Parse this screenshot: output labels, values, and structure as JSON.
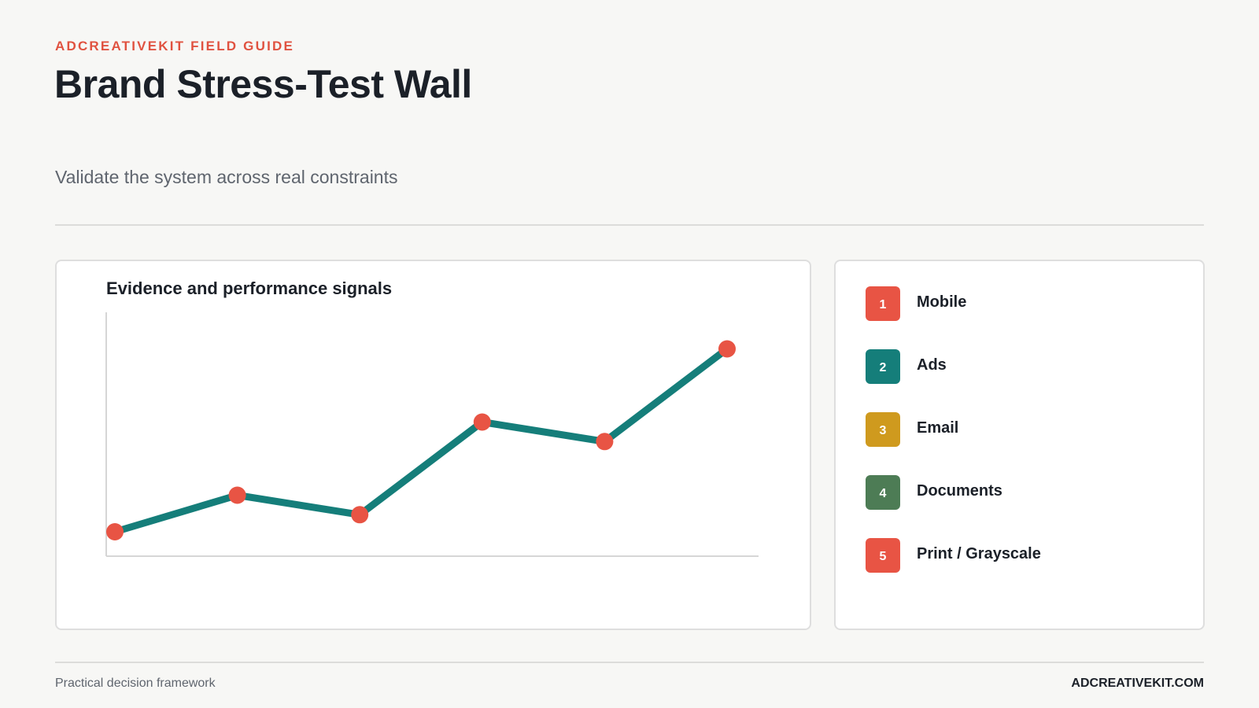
{
  "header": {
    "eyebrow": "ADCREATIVEKIT FIELD GUIDE",
    "title": "Brand Stress-Test Wall",
    "subtitle": "Validate the system across real constraints"
  },
  "chart_data": {
    "type": "line",
    "title": "Evidence and performance signals",
    "xlabel": "",
    "ylabel": "",
    "x": [
      1,
      2,
      3,
      4,
      5,
      6
    ],
    "series": [
      {
        "values": [
          10,
          25,
          17,
          55,
          47,
          85
        ]
      }
    ],
    "ylim": [
      0,
      100
    ],
    "grid": false,
    "colors": {
      "line": "#157e7a",
      "marker": "#e85444",
      "axis": "#d6d6d6"
    }
  },
  "legend": {
    "items": [
      {
        "number": "1",
        "label": "Mobile",
        "color": "#e85444"
      },
      {
        "number": "2",
        "label": "Ads",
        "color": "#157e7a"
      },
      {
        "number": "3",
        "label": "Email",
        "color": "#cf9a1e"
      },
      {
        "number": "4",
        "label": "Documents",
        "color": "#4d7c55"
      },
      {
        "number": "5",
        "label": "Print / Grayscale",
        "color": "#e85444"
      }
    ]
  },
  "footer": {
    "left": "Practical decision framework",
    "right": "ADCREATIVEKIT.COM"
  }
}
